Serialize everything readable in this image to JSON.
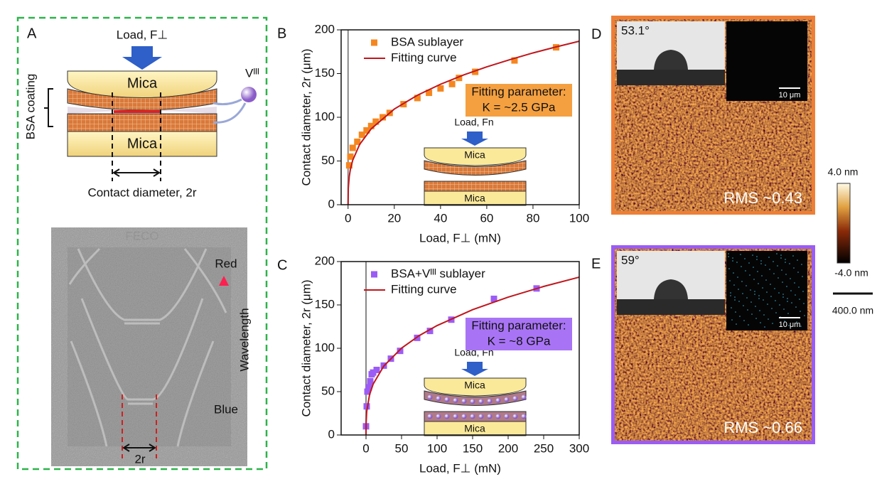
{
  "panel_a": {
    "label": "A",
    "load": "Load, F⊥",
    "mica_top": "Mica",
    "mica_bottom": "Mica",
    "coating": "BSA coating",
    "ion": "Vᴵᴵᴵ",
    "contact": "Contact diameter, 2r",
    "feco_title": "FECO",
    "red": "Red",
    "wavelength": "Wavelength",
    "blue": "Blue",
    "width": "2r"
  },
  "chart_data": [
    {
      "type": "scatter",
      "panel": "B",
      "xlabel": "Load, F⊥ (mN)",
      "ylabel": "Contact diameter, 2r (μm)",
      "xlim": [
        -3,
        100
      ],
      "ylim": [
        0,
        200
      ],
      "xticks": [
        0,
        20,
        40,
        60,
        80,
        100
      ],
      "yticks": [
        0,
        50,
        100,
        150,
        200
      ],
      "vline": 0,
      "series": [
        {
          "name": "BSA sublayer",
          "color": "#f5861f",
          "mode": "markers",
          "x": [
            0.5,
            1,
            2,
            4,
            6,
            8,
            10,
            12,
            15,
            18,
            24,
            30,
            35,
            40,
            45,
            48,
            55,
            72,
            90
          ],
          "values": [
            45,
            55,
            65,
            72,
            80,
            85,
            90,
            95,
            100,
            105,
            115,
            122,
            128,
            133,
            138,
            145,
            152,
            165,
            180
          ]
        },
        {
          "name": "Fitting curve",
          "color": "#c0161c",
          "mode": "line",
          "x": [
            0,
            0.1,
            0.5,
            1,
            2,
            5,
            10,
            20,
            30,
            40,
            50,
            60,
            70,
            80,
            90,
            100
          ],
          "values": [
            0,
            18.7,
            32,
            40.3,
            50.8,
            68.9,
            86.8,
            109.4,
            125.2,
            137.8,
            148.4,
            157.7,
            165.9,
            173.6,
            180.5,
            187
          ]
        }
      ],
      "annotation": [
        "Fitting parameter:",
        "K = ~2.5 GPa"
      ],
      "annotation_color": "#f5a040",
      "inset": {
        "load": "Load, Fn",
        "top": "Mica",
        "bottom": "Mica"
      }
    },
    {
      "type": "scatter",
      "panel": "C",
      "xlabel": "Load, F⊥ (mN)",
      "ylabel": "Contact diameter, 2r (μm)",
      "xlim": [
        -35,
        300
      ],
      "ylim": [
        0,
        200
      ],
      "xticks": [
        0,
        50,
        100,
        150,
        200,
        250,
        300
      ],
      "yticks": [
        0,
        50,
        100,
        150,
        200
      ],
      "vline": 0,
      "series": [
        {
          "name": "BSA+Vᴵᴵᴵ sublayer",
          "color": "#9b5cf5",
          "mode": "markers",
          "x": [
            0,
            1,
            2,
            4,
            6,
            8,
            10,
            15,
            25,
            35,
            48,
            72,
            90,
            120,
            180,
            240
          ],
          "values": [
            10,
            33,
            50,
            55,
            62,
            70,
            72,
            75,
            80,
            88,
            97,
            112,
            120,
            133,
            157,
            169
          ]
        },
        {
          "name": "Fitting curve",
          "color": "#c0161c",
          "mode": "line",
          "x": [
            0,
            0.1,
            1,
            5,
            10,
            25,
            50,
            75,
            100,
            150,
            200,
            250,
            300
          ],
          "values": [
            0,
            12.6,
            27.2,
            46.5,
            58.6,
            79.5,
            100.2,
            114.7,
            126.2,
            144.5,
            159,
            171.3,
            182
          ]
        }
      ],
      "annotation": [
        "Fitting parameter:",
        "K = ~8 GPa"
      ],
      "annotation_color": "#a874f5",
      "inset": {
        "load": "Load, Fn",
        "top": "Mica",
        "bottom": "Mica"
      }
    }
  ],
  "afm": [
    {
      "label": "D",
      "angle": "53.1°",
      "scale": "10 μm",
      "rms": "RMS ~0.43",
      "color": "#ee7f36"
    },
    {
      "label": "E",
      "angle": "59°",
      "scale": "10 μm",
      "rms": "RMS ~0.66",
      "color": "#9b5cf5"
    }
  ],
  "colorbar": {
    "max": "4.0 nm",
    "min": "-4.0 nm",
    "scale": "400.0 nm"
  }
}
